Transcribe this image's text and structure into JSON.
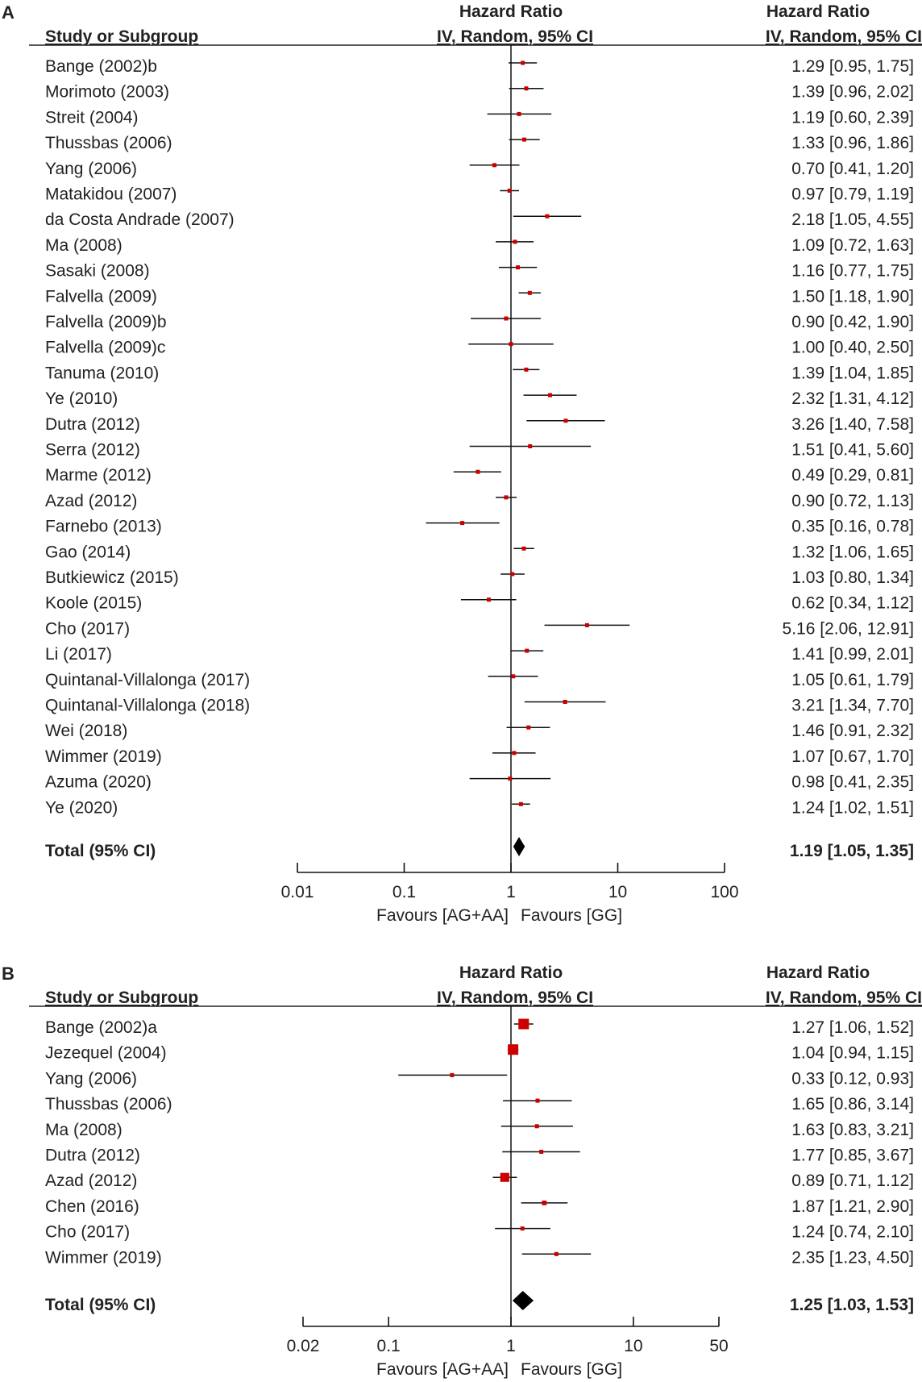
{
  "chart_data": [
    {
      "type": "forest",
      "panel_label": "A",
      "col_study_header": "Study or Subgroup",
      "col_plot_header_1": "Hazard Ratio",
      "col_plot_header_2": "IV, Random, 95% CI",
      "col_value_header_1": "Hazard Ratio",
      "col_value_header_2": "IV, Random, 95% CI",
      "x_scale": "log",
      "xlim": [
        0.01,
        100
      ],
      "ticks": [
        0.01,
        0.1,
        1,
        10,
        100
      ],
      "tick_labels": [
        "0.01",
        "0.1",
        "1",
        "10",
        "100"
      ],
      "favours_left": "Favours [AG+AA]",
      "favours_right": "Favours [GG]",
      "marker_color": "#cc0000",
      "studies": [
        {
          "name": "Bange (2002)b",
          "hr": 1.29,
          "lo": 0.95,
          "hi": 1.75,
          "label": "1.29 [0.95, 1.75]"
        },
        {
          "name": "Morimoto (2003)",
          "hr": 1.39,
          "lo": 0.96,
          "hi": 2.02,
          "label": "1.39 [0.96, 2.02]"
        },
        {
          "name": "Streit (2004)",
          "hr": 1.19,
          "lo": 0.6,
          "hi": 2.39,
          "label": "1.19 [0.60, 2.39]"
        },
        {
          "name": "Thussbas (2006)",
          "hr": 1.33,
          "lo": 0.96,
          "hi": 1.86,
          "label": "1.33 [0.96, 1.86]"
        },
        {
          "name": "Yang (2006)",
          "hr": 0.7,
          "lo": 0.41,
          "hi": 1.2,
          "label": "0.70 [0.41, 1.20]"
        },
        {
          "name": "Matakidou (2007)",
          "hr": 0.97,
          "lo": 0.79,
          "hi": 1.19,
          "label": "0.97 [0.79, 1.19]"
        },
        {
          "name": "da Costa Andrade (2007)",
          "hr": 2.18,
          "lo": 1.05,
          "hi": 4.55,
          "label": "2.18 [1.05, 4.55]"
        },
        {
          "name": "Ma (2008)",
          "hr": 1.09,
          "lo": 0.72,
          "hi": 1.63,
          "label": "1.09 [0.72, 1.63]"
        },
        {
          "name": "Sasaki (2008)",
          "hr": 1.16,
          "lo": 0.77,
          "hi": 1.75,
          "label": "1.16 [0.77, 1.75]"
        },
        {
          "name": "Falvella (2009)",
          "hr": 1.5,
          "lo": 1.18,
          "hi": 1.9,
          "label": "1.50 [1.18, 1.90]"
        },
        {
          "name": "Falvella (2009)b",
          "hr": 0.9,
          "lo": 0.42,
          "hi": 1.9,
          "label": "0.90 [0.42, 1.90]"
        },
        {
          "name": "Falvella (2009)c",
          "hr": 1.0,
          "lo": 0.4,
          "hi": 2.5,
          "label": "1.00 [0.40, 2.50]"
        },
        {
          "name": "Tanuma (2010)",
          "hr": 1.39,
          "lo": 1.04,
          "hi": 1.85,
          "label": "1.39 [1.04, 1.85]"
        },
        {
          "name": "Ye (2010)",
          "hr": 2.32,
          "lo": 1.31,
          "hi": 4.12,
          "label": "2.32 [1.31, 4.12]"
        },
        {
          "name": "Dutra (2012)",
          "hr": 3.26,
          "lo": 1.4,
          "hi": 7.58,
          "label": "3.26 [1.40, 7.58]"
        },
        {
          "name": "Serra (2012)",
          "hr": 1.51,
          "lo": 0.41,
          "hi": 5.6,
          "label": "1.51 [0.41, 5.60]"
        },
        {
          "name": "Marme (2012)",
          "hr": 0.49,
          "lo": 0.29,
          "hi": 0.81,
          "label": "0.49 [0.29, 0.81]"
        },
        {
          "name": "Azad (2012)",
          "hr": 0.9,
          "lo": 0.72,
          "hi": 1.13,
          "label": "0.90 [0.72, 1.13]"
        },
        {
          "name": "Farnebo (2013)",
          "hr": 0.35,
          "lo": 0.16,
          "hi": 0.78,
          "label": "0.35 [0.16, 0.78]"
        },
        {
          "name": "Gao (2014)",
          "hr": 1.32,
          "lo": 1.06,
          "hi": 1.65,
          "label": "1.32 [1.06, 1.65]"
        },
        {
          "name": "Butkiewicz (2015)",
          "hr": 1.03,
          "lo": 0.8,
          "hi": 1.34,
          "label": "1.03 [0.80, 1.34]"
        },
        {
          "name": "Koole (2015)",
          "hr": 0.62,
          "lo": 0.34,
          "hi": 1.12,
          "label": "0.62 [0.34, 1.12]"
        },
        {
          "name": "Cho (2017)",
          "hr": 5.16,
          "lo": 2.06,
          "hi": 12.91,
          "label": "5.16 [2.06, 12.91]"
        },
        {
          "name": "Li (2017)",
          "hr": 1.41,
          "lo": 0.99,
          "hi": 2.01,
          "label": "1.41 [0.99, 2.01]"
        },
        {
          "name": "Quintanal-Villalonga (2017)",
          "hr": 1.05,
          "lo": 0.61,
          "hi": 1.79,
          "label": "1.05 [0.61, 1.79]"
        },
        {
          "name": "Quintanal-Villalonga (2018)",
          "hr": 3.21,
          "lo": 1.34,
          "hi": 7.7,
          "label": "3.21 [1.34, 7.70]"
        },
        {
          "name": "Wei (2018)",
          "hr": 1.46,
          "lo": 0.91,
          "hi": 2.32,
          "label": "1.46 [0.91, 2.32]"
        },
        {
          "name": "Wimmer (2019)",
          "hr": 1.07,
          "lo": 0.67,
          "hi": 1.7,
          "label": "1.07 [0.67, 1.70]"
        },
        {
          "name": "Azuma (2020)",
          "hr": 0.98,
          "lo": 0.41,
          "hi": 2.35,
          "label": "0.98 [0.41, 2.35]"
        },
        {
          "name": "Ye (2020)",
          "hr": 1.24,
          "lo": 1.02,
          "hi": 1.51,
          "label": "1.24 [1.02, 1.51]"
        }
      ],
      "total": {
        "name": "Total (95% CI)",
        "hr": 1.19,
        "lo": 1.05,
        "hi": 1.35,
        "label": "1.19 [1.05, 1.35]"
      }
    },
    {
      "type": "forest",
      "panel_label": "B",
      "col_study_header": "Study or Subgroup",
      "col_plot_header_1": "Hazard Ratio",
      "col_plot_header_2": "IV, Random, 95% CI",
      "col_value_header_1": "Hazard Ratio",
      "col_value_header_2": "IV, Random, 95% CI",
      "x_scale": "log",
      "xlim": [
        0.02,
        50
      ],
      "ticks": [
        0.02,
        0.1,
        1,
        10,
        50
      ],
      "tick_labels": [
        "0.02",
        "0.1",
        "1",
        "10",
        "50"
      ],
      "favours_left": "Favours [AG+AA]",
      "favours_right": "Favours [GG]",
      "marker_color": "#cc0000",
      "studies": [
        {
          "name": "Bange (2002)a",
          "hr": 1.27,
          "lo": 1.06,
          "hi": 1.52,
          "label": "1.27 [1.06, 1.52]"
        },
        {
          "name": "Jezequel (2004)",
          "hr": 1.04,
          "lo": 0.94,
          "hi": 1.15,
          "label": "1.04 [0.94, 1.15]"
        },
        {
          "name": "Yang (2006)",
          "hr": 0.33,
          "lo": 0.12,
          "hi": 0.93,
          "label": "0.33 [0.12, 0.93]"
        },
        {
          "name": "Thussbas (2006)",
          "hr": 1.65,
          "lo": 0.86,
          "hi": 3.14,
          "label": "1.65 [0.86, 3.14]"
        },
        {
          "name": "Ma (2008)",
          "hr": 1.63,
          "lo": 0.83,
          "hi": 3.21,
          "label": "1.63 [0.83, 3.21]"
        },
        {
          "name": "Dutra (2012)",
          "hr": 1.77,
          "lo": 0.85,
          "hi": 3.67,
          "label": "1.77 [0.85, 3.67]"
        },
        {
          "name": "Azad (2012)",
          "hr": 0.89,
          "lo": 0.71,
          "hi": 1.12,
          "label": "0.89 [0.71, 1.12]"
        },
        {
          "name": "Chen (2016)",
          "hr": 1.87,
          "lo": 1.21,
          "hi": 2.9,
          "label": "1.87 [1.21, 2.90]"
        },
        {
          "name": "Cho (2017)",
          "hr": 1.24,
          "lo": 0.74,
          "hi": 2.1,
          "label": "1.24 [0.74, 2.10]"
        },
        {
          "name": "Wimmer (2019)",
          "hr": 2.35,
          "lo": 1.23,
          "hi": 4.5,
          "label": "2.35 [1.23, 4.50]"
        }
      ],
      "total": {
        "name": "Total (95% CI)",
        "hr": 1.25,
        "lo": 1.03,
        "hi": 1.53,
        "label": "1.25 [1.03, 1.53]"
      }
    }
  ]
}
